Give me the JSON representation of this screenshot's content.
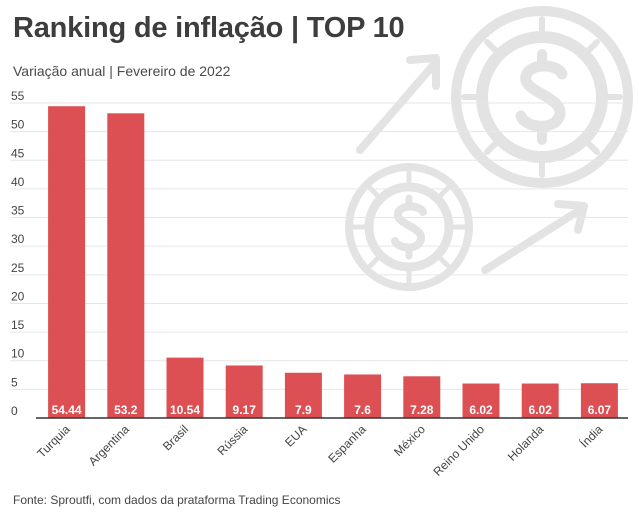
{
  "title": "Ranking de inflação | TOP 10",
  "subtitle": "Variação anual | Fevereiro de 2022",
  "source": "Fonte: Sproutfi, com dados da prataforma Trading Economics",
  "decoration": {
    "icon": "dollar-coins-growth-icon",
    "color": "#e3e3e3"
  },
  "chart_data": {
    "type": "bar",
    "categories": [
      "Turquia",
      "Argentina",
      "Brasil",
      "Rússia",
      "EUA",
      "Espanha",
      "México",
      "Reino Unido",
      "Holanda",
      "Índia"
    ],
    "values": [
      54.44,
      53.2,
      10.54,
      9.17,
      7.9,
      7.6,
      7.28,
      6.02,
      6.02,
      6.07
    ],
    "data_labels": [
      "54.44",
      "53.2",
      "10.54",
      "9.17",
      "7.9",
      "7.6",
      "7.28",
      "6.02",
      "6.02",
      "6.07"
    ],
    "yticks": [
      0,
      5,
      10,
      15,
      20,
      25,
      30,
      35,
      40,
      45,
      50,
      55
    ],
    "ylim": [
      0,
      55
    ],
    "grid": true,
    "bar_color": "#dc5054",
    "xlabel_rotation": "-45deg"
  }
}
